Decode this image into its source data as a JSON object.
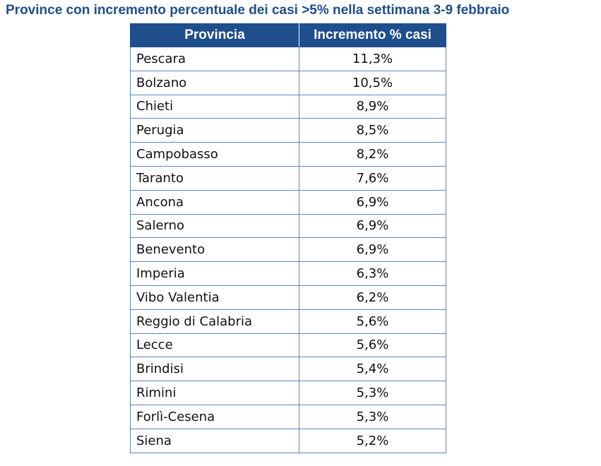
{
  "title": "Province con incremento percentuale dei casi >5% nella settimana 3-9 febbraio",
  "colors": {
    "header_bg": "#1F4E8C",
    "title_text": "#1F4E8C",
    "border": "#5b86bf"
  },
  "table": {
    "headers": {
      "provincia": "Provincia",
      "incremento": "Incremento % casi"
    },
    "rows": [
      {
        "provincia": "Pescara",
        "incremento": "11,3%"
      },
      {
        "provincia": "Bolzano",
        "incremento": "10,5%"
      },
      {
        "provincia": "Chieti",
        "incremento": "8,9%"
      },
      {
        "provincia": "Perugia",
        "incremento": "8,5%"
      },
      {
        "provincia": "Campobasso",
        "incremento": "8,2%"
      },
      {
        "provincia": "Taranto",
        "incremento": "7,6%"
      },
      {
        "provincia": "Ancona",
        "incremento": "6,9%"
      },
      {
        "provincia": "Salerno",
        "incremento": "6,9%"
      },
      {
        "provincia": "Benevento",
        "incremento": "6,9%"
      },
      {
        "provincia": "Imperia",
        "incremento": "6,3%"
      },
      {
        "provincia": "Vibo Valentia",
        "incremento": "6,2%"
      },
      {
        "provincia": "Reggio di Calabria",
        "incremento": "5,6%"
      },
      {
        "provincia": "Lecce",
        "incremento": "5,6%"
      },
      {
        "provincia": "Brindisi",
        "incremento": "5,4%"
      },
      {
        "provincia": "Rimini",
        "incremento": "5,3%"
      },
      {
        "provincia": "Forlì-Cesena",
        "incremento": "5,3%"
      },
      {
        "provincia": "Siena",
        "incremento": "5,2%"
      }
    ]
  }
}
